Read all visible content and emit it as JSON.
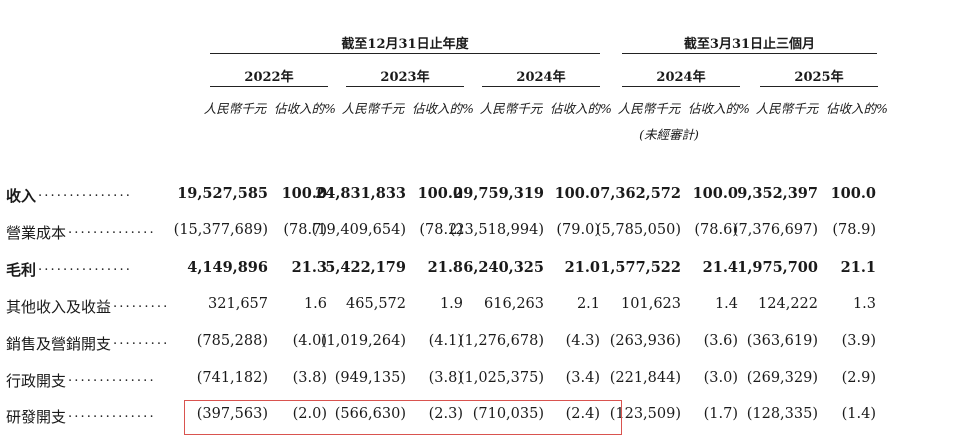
{
  "header": {
    "group1": "截至12月31日止年度",
    "group2": "截至3月31日止三個月",
    "years": [
      "2022年",
      "2023年",
      "2024年",
      "2024年",
      "2025年"
    ],
    "units": [
      "人民幣千元",
      "佔收入的%",
      "人民幣千元",
      "佔收入的%",
      "人民幣千元",
      "佔收入的%",
      "人民幣千元",
      "佔收入的%",
      "人民幣千元",
      "佔收入的%"
    ],
    "unaudited": "(未經審計)"
  },
  "rows": [
    {
      "label": "收入",
      "dots": ". . . . . . . . . . . . . . .",
      "bold": true,
      "values": [
        "19,527,585",
        "100.0",
        "24,831,833",
        "100.0",
        "29,759,319",
        "100.0",
        "7,362,572",
        "100.0",
        "9,352,397",
        "100.0"
      ]
    },
    {
      "label": "營業成本",
      "dots": ". . . . . . . . . . . . . .",
      "bold": false,
      "values": [
        "(15,377,689)",
        "(78.7)",
        "(19,409,654)",
        "(78.2)",
        "(23,518,994)",
        "(79.0)",
        "(5,785,050)",
        "(78.6)",
        "(7,376,697)",
        "(78.9)"
      ]
    },
    {
      "label": "毛利",
      "dots": ". . . . . . . . . . . . . . .",
      "bold": true,
      "values": [
        "4,149,896",
        "21.3",
        "5,422,179",
        "21.8",
        "6,240,325",
        "21.0",
        "1,577,522",
        "21.4",
        "1,975,700",
        "21.1"
      ]
    },
    {
      "label": "其他收入及收益",
      "dots": ". . . . . . . . .",
      "bold": false,
      "values": [
        "321,657",
        "1.6",
        "465,572",
        "1.9",
        "616,263",
        "2.1",
        "101,623",
        "1.4",
        "124,222",
        "1.3"
      ]
    },
    {
      "label": "銷售及營銷開支",
      "dots": ". . . . . . . . .",
      "bold": false,
      "values": [
        "(785,288)",
        "(4.0)",
        "(1,019,264)",
        "(4.1)",
        "(1,276,678)",
        "(4.3)",
        "(263,936)",
        "(3.6)",
        "(363,619)",
        "(3.9)"
      ]
    },
    {
      "label": "行政開支",
      "dots": ". . . . . . . . . . . . . .",
      "bold": false,
      "values": [
        "(741,182)",
        "(3.8)",
        "(949,135)",
        "(3.8)",
        "(1,025,375)",
        "(3.4)",
        "(221,844)",
        "(3.0)",
        "(269,329)",
        "(2.9)"
      ]
    },
    {
      "label": "研發開支",
      "dots": ". . . . . . . . . . . . . .",
      "bold": false,
      "values": [
        "(397,563)",
        "(2.0)",
        "(566,630)",
        "(2.3)",
        "(710,035)",
        "(2.4)",
        "(123,509)",
        "(1.7)",
        "(128,335)",
        "(1.4)"
      ]
    }
  ],
  "highlight_color": "#d9534f"
}
